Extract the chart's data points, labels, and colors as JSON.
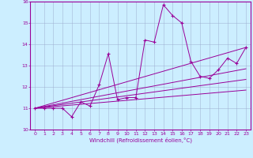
{
  "xlabel": "Windchill (Refroidissement éolien,°C)",
  "bg_color": "#cceeff",
  "line_color": "#990099",
  "grid_color": "#99aacc",
  "xlim": [
    -0.5,
    23.5
  ],
  "ylim": [
    10,
    16
  ],
  "xticks": [
    0,
    1,
    2,
    3,
    4,
    5,
    6,
    7,
    8,
    9,
    10,
    11,
    12,
    13,
    14,
    15,
    16,
    17,
    18,
    19,
    20,
    21,
    22,
    23
  ],
  "yticks": [
    10,
    11,
    12,
    13,
    14,
    15,
    16
  ],
  "series1": [
    [
      0,
      11.0
    ],
    [
      1,
      11.0
    ],
    [
      2,
      11.0
    ],
    [
      3,
      11.0
    ],
    [
      4,
      10.6
    ],
    [
      5,
      11.3
    ],
    [
      6,
      11.1
    ],
    [
      7,
      12.1
    ],
    [
      8,
      13.55
    ],
    [
      9,
      11.4
    ],
    [
      10,
      11.5
    ],
    [
      11,
      11.5
    ],
    [
      12,
      14.2
    ],
    [
      13,
      14.1
    ],
    [
      14,
      15.85
    ],
    [
      15,
      15.35
    ],
    [
      16,
      15.0
    ],
    [
      17,
      13.2
    ],
    [
      18,
      12.5
    ],
    [
      19,
      12.4
    ],
    [
      20,
      12.8
    ],
    [
      21,
      13.35
    ],
    [
      22,
      13.1
    ],
    [
      23,
      13.85
    ]
  ],
  "line_straight1": [
    [
      0,
      11.0
    ],
    [
      23,
      13.85
    ]
  ],
  "line_straight2": [
    [
      0,
      11.0
    ],
    [
      23,
      12.85
    ]
  ],
  "line_straight3": [
    [
      0,
      11.0
    ],
    [
      23,
      12.35
    ]
  ],
  "line_straight4": [
    [
      0,
      11.0
    ],
    [
      23,
      11.85
    ]
  ]
}
